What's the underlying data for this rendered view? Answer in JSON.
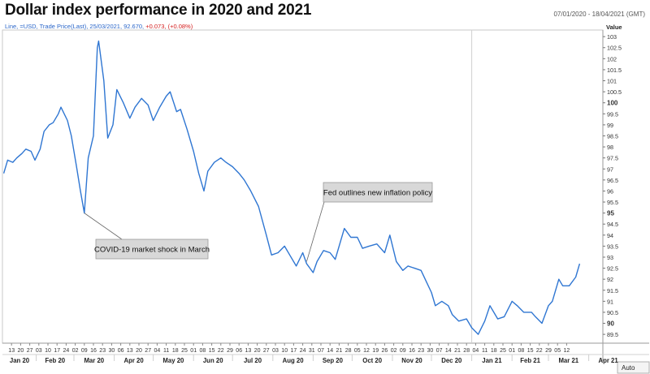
{
  "header": {
    "title": "Dollar index performance in 2020 and 2021",
    "date_range": "07/01/2020 - 18/04/2021 (GMT)",
    "info_instrument": "Line, =USD, Trade Price(Last), 25/03/2021, 92.670,",
    "info_change": "+0.073, (+0.08%)"
  },
  "controls": {
    "auto_label": "Auto"
  },
  "chart_data": {
    "type": "line",
    "title": "Dollar index performance in 2020 and 2021",
    "ylabel": "Value",
    "ylim": [
      89.1,
      103.3
    ],
    "grid": false,
    "y_ticks": [
      103,
      102.5,
      102,
      101.5,
      101,
      100.5,
      100,
      99.5,
      99,
      98.5,
      98,
      97.5,
      97,
      96.5,
      96,
      95.5,
      95,
      94.5,
      94,
      93.5,
      93,
      92.5,
      92,
      91.5,
      91,
      90.5,
      90,
      89.5
    ],
    "y_ticks_bold": [
      100,
      95,
      90
    ],
    "x_ticks": [
      "13",
      "20",
      "27",
      "03",
      "10",
      "17",
      "24",
      "02",
      "09",
      "16",
      "23",
      "30",
      "06",
      "13",
      "20",
      "27",
      "04",
      "11",
      "18",
      "25",
      "01",
      "08",
      "15",
      "22",
      "29",
      "06",
      "13",
      "20",
      "27",
      "03",
      "10",
      "17",
      "24",
      "31",
      "07",
      "14",
      "21",
      "28",
      "05",
      "12",
      "19",
      "26",
      "02",
      "09",
      "16",
      "23",
      "30",
      "07",
      "14",
      "21",
      "28",
      "04",
      "11",
      "18",
      "25",
      "01",
      "08",
      "15",
      "22",
      "29",
      "05",
      "12"
    ],
    "x_month_labels": [
      "Jan 20",
      "Feb 20",
      "Mar 20",
      "Apr 20",
      "May 20",
      "Jun 20",
      "Jul 20",
      "Aug 20",
      "Sep 20",
      "Oct 20",
      "Nov 20",
      "Dec 20",
      "Jan 21",
      "Feb 21",
      "Mar 21",
      "Apr 21"
    ],
    "series": [
      {
        "color": "#2f76d2",
        "x": [
          "2020-01-07",
          "2020-01-10",
          "2020-01-14",
          "2020-01-17",
          "2020-01-21",
          "2020-01-24",
          "2020-01-28",
          "2020-01-31",
          "2020-02-04",
          "2020-02-07",
          "2020-02-11",
          "2020-02-14",
          "2020-02-18",
          "2020-02-20",
          "2020-02-25",
          "2020-02-28",
          "2020-03-03",
          "2020-03-06",
          "2020-03-09",
          "2020-03-12",
          "2020-03-16",
          "2020-03-19",
          "2020-03-20",
          "2020-03-24",
          "2020-03-27",
          "2020-03-31",
          "2020-04-03",
          "2020-04-08",
          "2020-04-13",
          "2020-04-17",
          "2020-04-22",
          "2020-04-27",
          "2020-05-01",
          "2020-05-06",
          "2020-05-11",
          "2020-05-14",
          "2020-05-19",
          "2020-05-22",
          "2020-05-27",
          "2020-06-01",
          "2020-06-05",
          "2020-06-09",
          "2020-06-12",
          "2020-06-17",
          "2020-06-22",
          "2020-06-26",
          "2020-07-01",
          "2020-07-06",
          "2020-07-10",
          "2020-07-15",
          "2020-07-21",
          "2020-07-27",
          "2020-07-31",
          "2020-08-05",
          "2020-08-10",
          "2020-08-14",
          "2020-08-19",
          "2020-08-24",
          "2020-08-27",
          "2020-09-01",
          "2020-09-04",
          "2020-09-09",
          "2020-09-14",
          "2020-09-18",
          "2020-09-25",
          "2020-09-30",
          "2020-10-05",
          "2020-10-09",
          "2020-10-14",
          "2020-10-20",
          "2020-10-26",
          "2020-10-30",
          "2020-11-04",
          "2020-11-09",
          "2020-11-13",
          "2020-11-18",
          "2020-11-23",
          "2020-11-27",
          "2020-12-01",
          "2020-12-04",
          "2020-12-09",
          "2020-12-14",
          "2020-12-17",
          "2020-12-22",
          "2020-12-28",
          "2021-01-01",
          "2021-01-06",
          "2021-01-11",
          "2021-01-15",
          "2021-01-21",
          "2021-01-26",
          "2021-02-01",
          "2021-02-05",
          "2021-02-10",
          "2021-02-16",
          "2021-02-19",
          "2021-02-24",
          "2021-03-01",
          "2021-03-04",
          "2021-03-09",
          "2021-03-12",
          "2021-03-17",
          "2021-03-22",
          "2021-03-25"
        ],
        "values": [
          96.8,
          97.4,
          97.3,
          97.5,
          97.7,
          97.9,
          97.8,
          97.4,
          97.9,
          98.7,
          99.0,
          99.1,
          99.5,
          99.8,
          99.2,
          98.5,
          97.1,
          96.0,
          95.0,
          97.5,
          98.5,
          102.5,
          102.8,
          101.0,
          98.4,
          99.0,
          100.6,
          100.0,
          99.3,
          99.8,
          100.2,
          99.9,
          99.2,
          99.8,
          100.3,
          100.5,
          99.6,
          99.7,
          98.8,
          97.8,
          96.8,
          96.0,
          96.9,
          97.3,
          97.5,
          97.3,
          97.1,
          96.8,
          96.5,
          96.0,
          95.3,
          94.0,
          93.1,
          93.2,
          93.5,
          93.1,
          92.6,
          93.2,
          92.7,
          92.3,
          92.8,
          93.3,
          93.2,
          92.9,
          94.3,
          93.9,
          93.9,
          93.4,
          93.5,
          93.6,
          93.2,
          94.0,
          92.8,
          92.4,
          92.6,
          92.5,
          92.4,
          91.9,
          91.4,
          90.8,
          91.0,
          90.8,
          90.4,
          90.1,
          90.2,
          89.8,
          89.5,
          90.1,
          90.8,
          90.2,
          90.3,
          91.0,
          90.8,
          90.5,
          90.5,
          90.3,
          90.0,
          90.8,
          91.0,
          92.0,
          91.7,
          91.7,
          92.1,
          92.7
        ]
      }
    ],
    "annotations": [
      {
        "text": "COVID-19 market shock in March",
        "x": "2020-03-09",
        "y": 95.0
      },
      {
        "text": "Fed outlines new inflation policy",
        "x": "2020-08-27",
        "y": 92.8
      }
    ]
  }
}
